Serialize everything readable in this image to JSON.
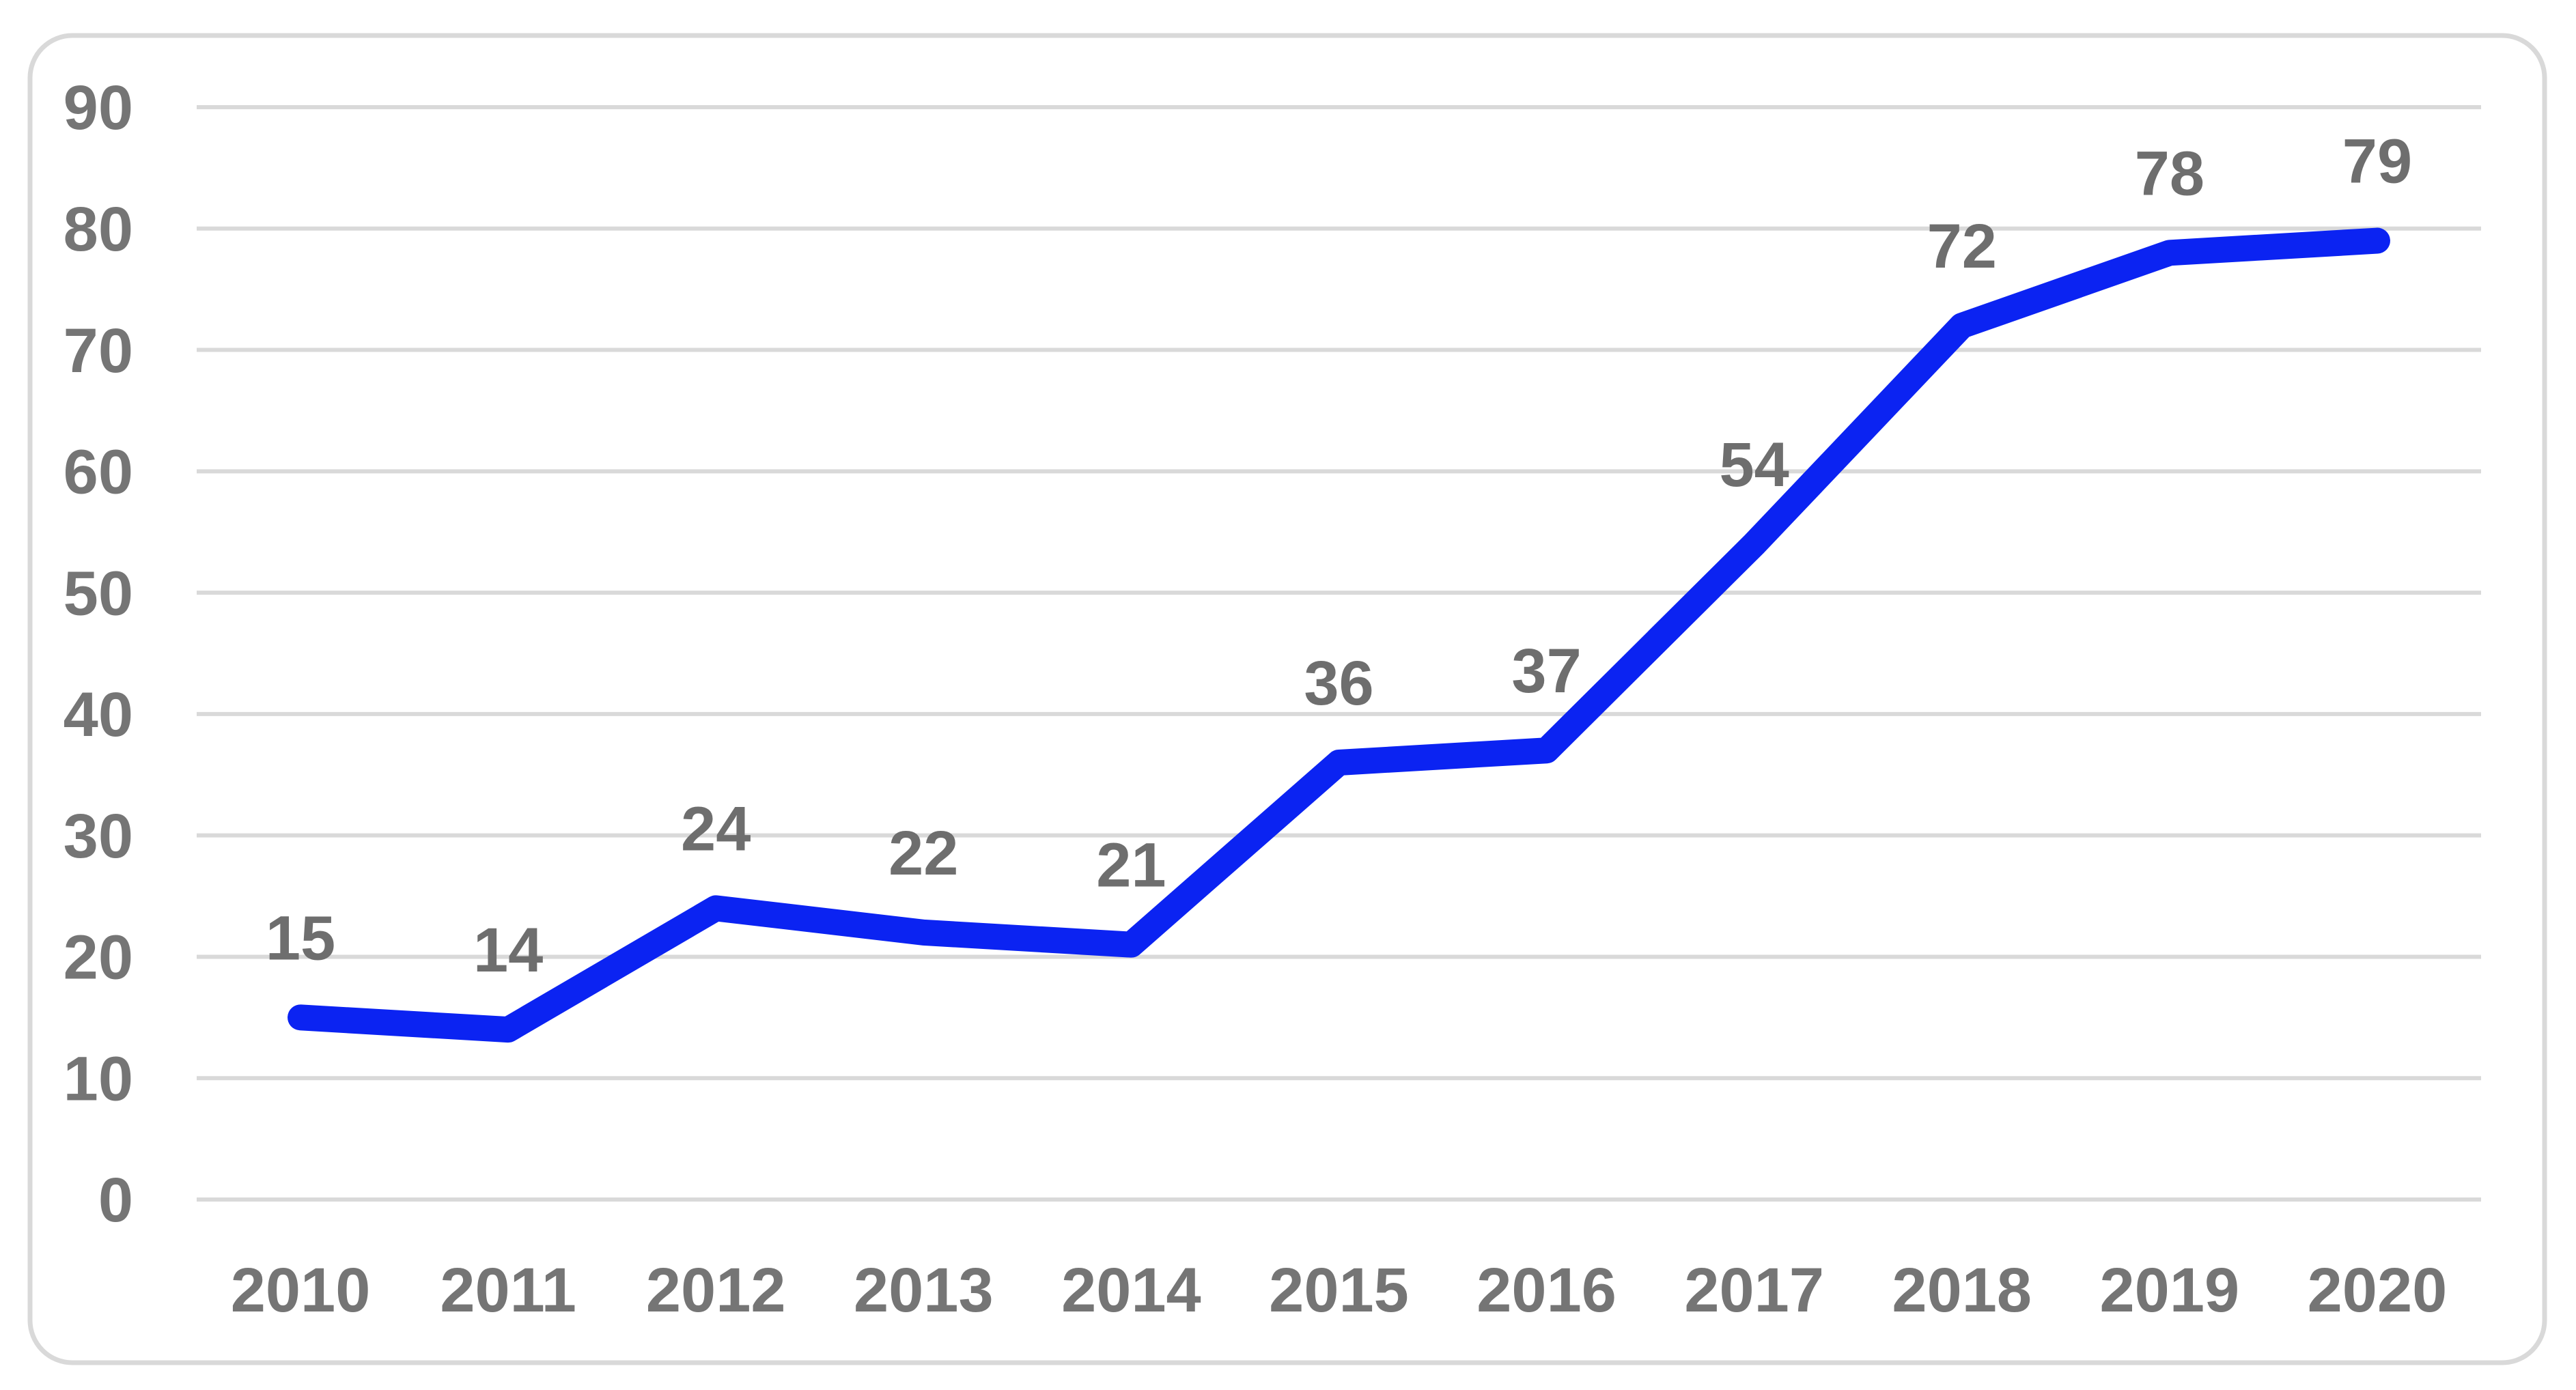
{
  "chart": {
    "title": "",
    "colors": {
      "background": "#ffffff",
      "border": "#d9d9d9",
      "gridline": "#d9d9d9",
      "axis_text": "#757575",
      "data_label_text": "#6e6e6e",
      "series_line": "#0b23f2"
    }
  },
  "chart_data": {
    "type": "line",
    "categories": [
      "2010",
      "2011",
      "2012",
      "2013",
      "2014",
      "2015",
      "2016",
      "2017",
      "2018",
      "2019",
      "2020"
    ],
    "series": [
      {
        "name": "",
        "values": [
          15,
          14,
          24,
          22,
          21,
          36,
          37,
          54,
          72,
          78,
          79
        ]
      }
    ],
    "title": "",
    "xlabel": "",
    "ylabel": "",
    "ylim": [
      0,
      90
    ],
    "yticks": [
      0,
      10,
      20,
      30,
      40,
      50,
      60,
      70,
      80,
      90
    ],
    "grid": true,
    "legend_position": "none",
    "data_labels": true
  }
}
